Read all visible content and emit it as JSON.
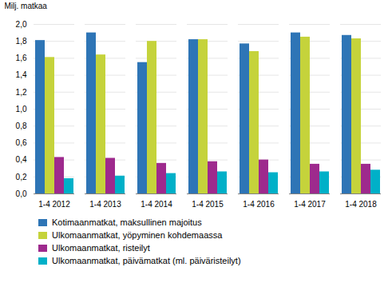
{
  "chart_data": {
    "type": "bar",
    "ylabel": "Milj. matkaa",
    "categories": [
      "1-4 2012",
      "1-4 2013",
      "1-4 2014",
      "1-4 2015",
      "1-4 2016",
      "1-4 2017",
      "1-4 2018"
    ],
    "series": [
      {
        "name": "Kotimaanmatkat, maksullinen majoitus",
        "color": "#2E75B6",
        "values": [
          1.81,
          1.9,
          1.55,
          1.82,
          1.77,
          1.9,
          1.87
        ]
      },
      {
        "name": "Ulkomaanmatkat, yöpyminen kohdemaassa",
        "color": "#C5D33B",
        "values": [
          1.61,
          1.64,
          1.8,
          1.82,
          1.68,
          1.85,
          1.83
        ]
      },
      {
        "name": "Ulkomaanmatkat, risteilyt",
        "color": "#9E2A8D",
        "values": [
          0.43,
          0.42,
          0.36,
          0.38,
          0.4,
          0.35,
          0.35
        ]
      },
      {
        "name": "Ulkomaanmatkat, päivämatkat (ml. päiväristeilyt)",
        "color": "#00B0C8",
        "values": [
          0.18,
          0.21,
          0.24,
          0.26,
          0.25,
          0.26,
          0.28
        ]
      }
    ],
    "ylim": [
      0.0,
      2.0
    ],
    "yticks": [
      {
        "value": 0.0,
        "label": "0,0"
      },
      {
        "value": 0.2,
        "label": "0,2"
      },
      {
        "value": 0.4,
        "label": "0,4"
      },
      {
        "value": 0.6,
        "label": "0,6"
      },
      {
        "value": 0.8,
        "label": "0,8"
      },
      {
        "value": 1.0,
        "label": "1,0"
      },
      {
        "value": 1.2,
        "label": "1,2"
      },
      {
        "value": 1.4,
        "label": "1,4"
      },
      {
        "value": 1.6,
        "label": "1,6"
      },
      {
        "value": 1.8,
        "label": "1,8"
      },
      {
        "value": 2.0,
        "label": "2,0"
      }
    ],
    "grid": true,
    "legend": "bottom"
  }
}
